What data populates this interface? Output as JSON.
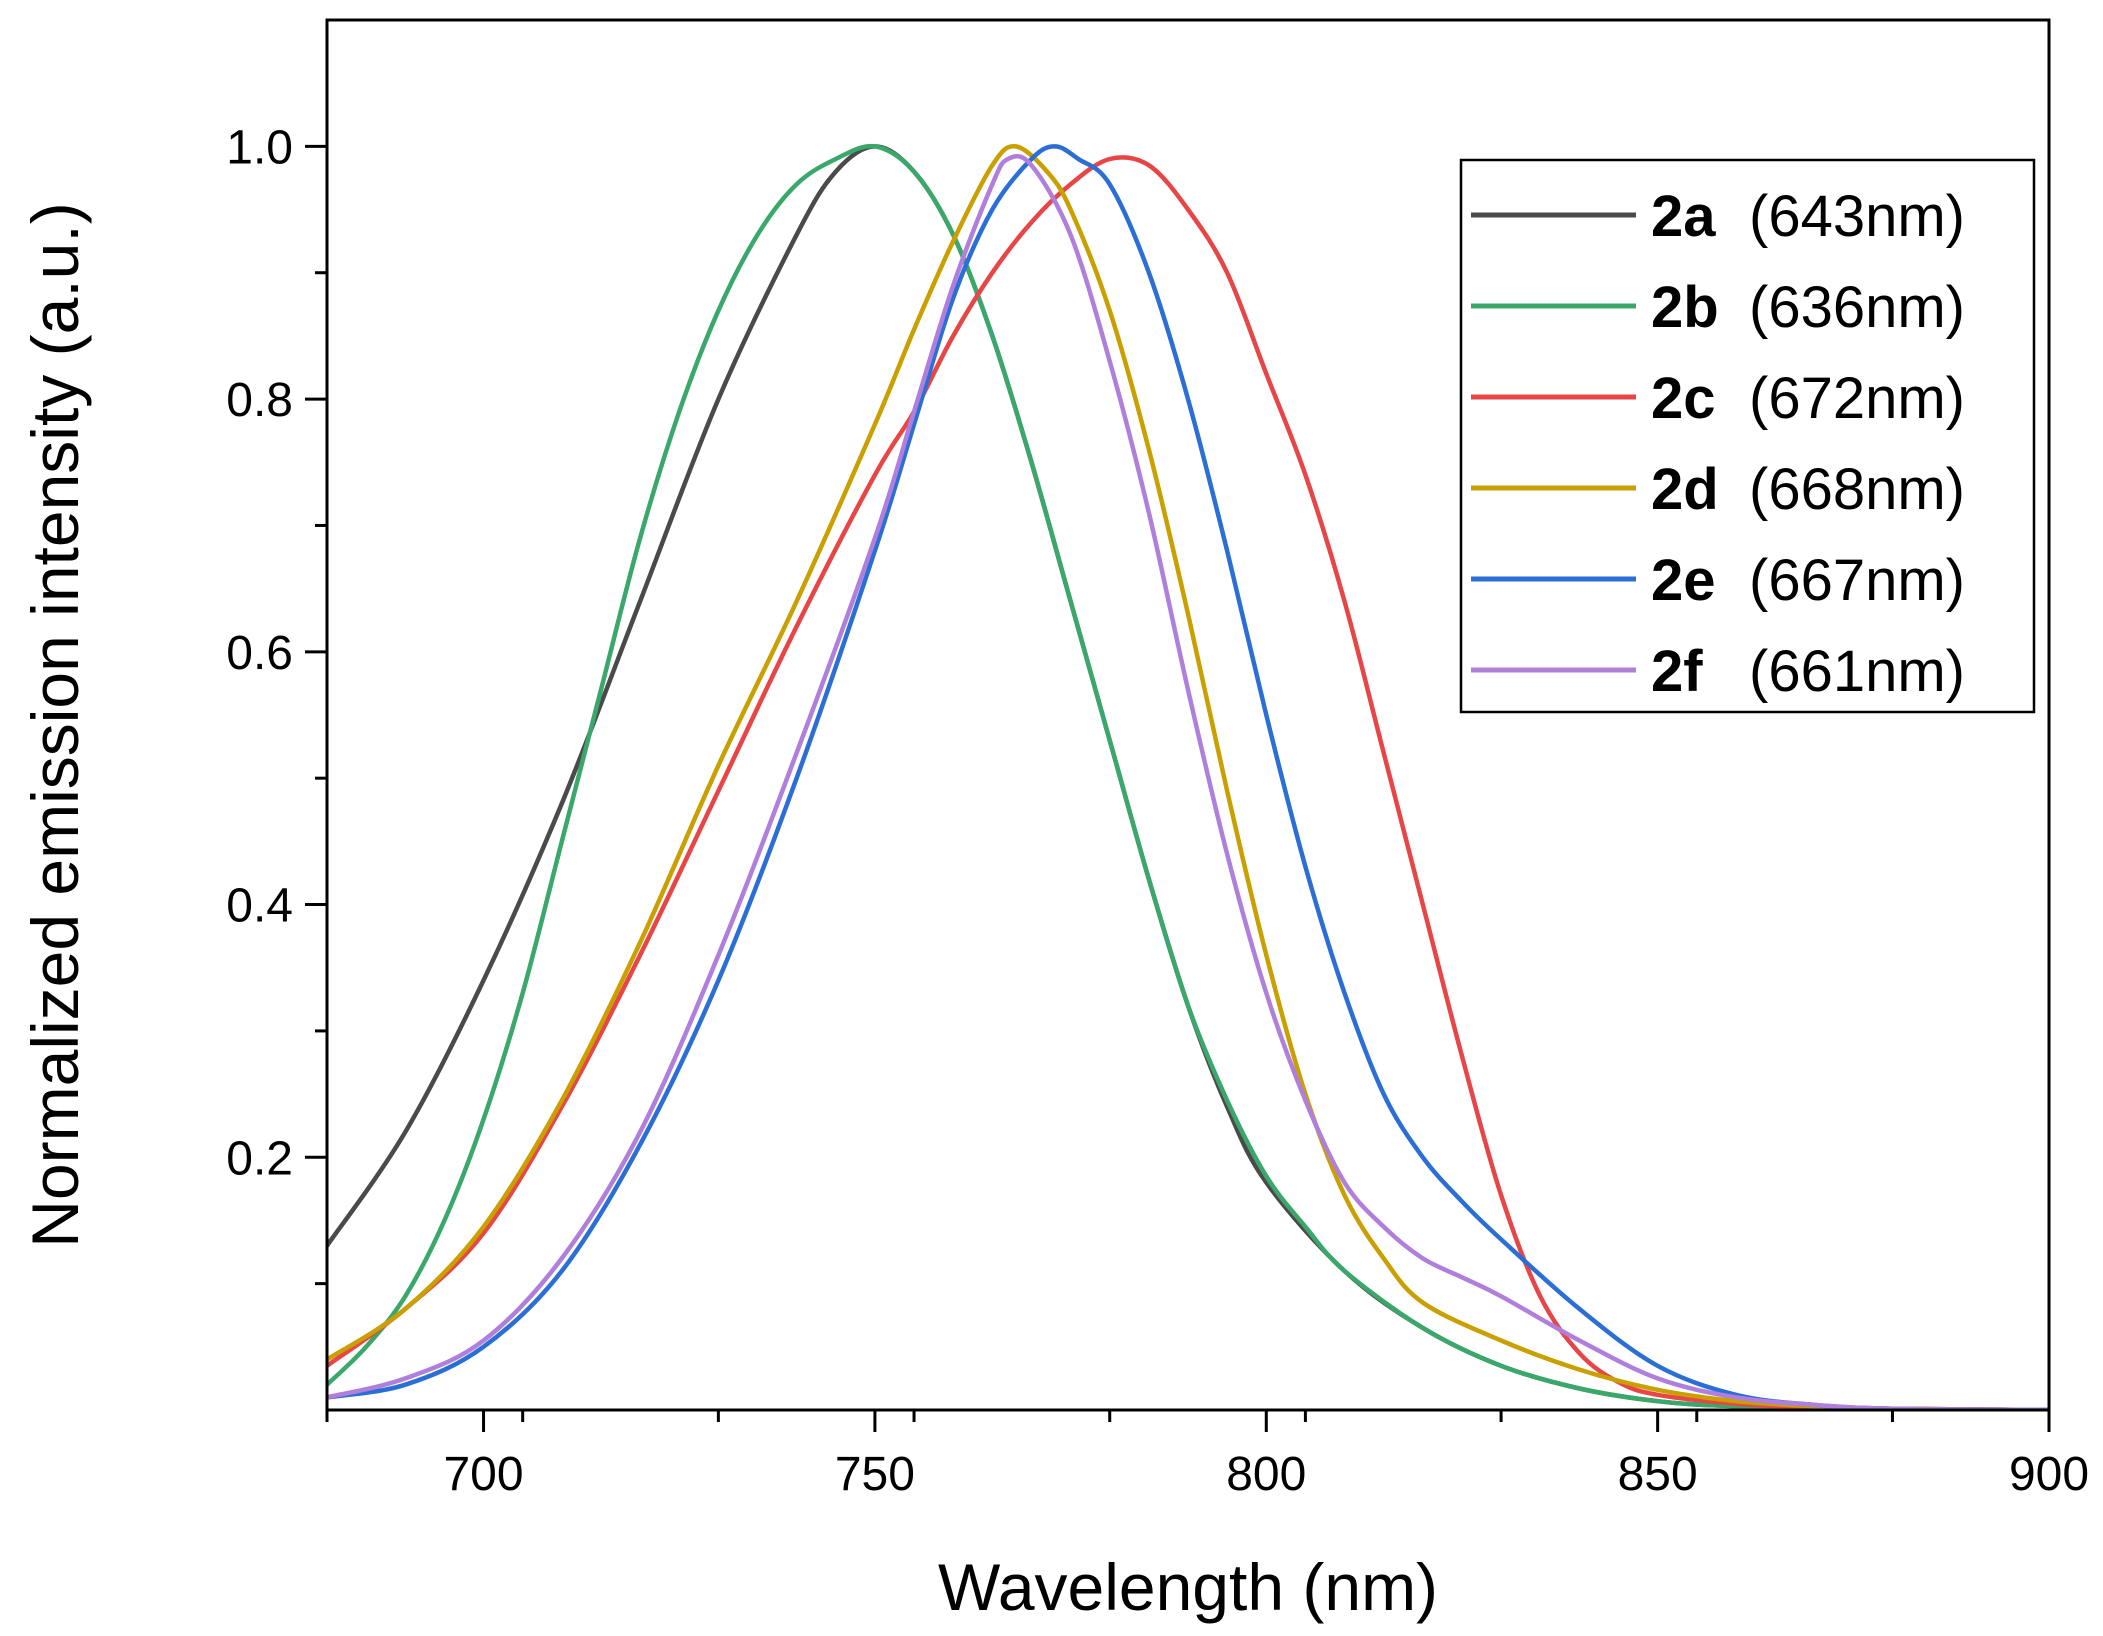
{
  "chart_data": {
    "type": "line",
    "title": "",
    "xlabel": "Wavelength (nm)",
    "ylabel": "Normalized emission intensity (a.u.)",
    "xlim": [
      680,
      900
    ],
    "ylim": [
      0.0,
      1.1
    ],
    "x_ticks": [
      700,
      750,
      800,
      850,
      900
    ],
    "x_tick_labels": [
      "700",
      "750",
      "800",
      "850",
      "900"
    ],
    "y_ticks": [
      0.2,
      0.4,
      0.6,
      0.8,
      1.0
    ],
    "y_tick_labels": [
      "0.2",
      "0.4",
      "0.6",
      "0.8",
      "1.0"
    ],
    "grid": false,
    "legend_position": "top-right",
    "series": [
      {
        "id": "2a",
        "label": "(643nm)",
        "color": "#4a4a4a",
        "points": [
          [
            680,
            0.13
          ],
          [
            690,
            0.22
          ],
          [
            700,
            0.34
          ],
          [
            710,
            0.48
          ],
          [
            720,
            0.64
          ],
          [
            730,
            0.8
          ],
          [
            740,
            0.93
          ],
          [
            745,
            0.98
          ],
          [
            750,
            1.0
          ],
          [
            755,
            0.98
          ],
          [
            760,
            0.93
          ],
          [
            765,
            0.85
          ],
          [
            770,
            0.75
          ],
          [
            775,
            0.64
          ],
          [
            780,
            0.53
          ],
          [
            785,
            0.42
          ],
          [
            790,
            0.32
          ],
          [
            795,
            0.24
          ],
          [
            800,
            0.18
          ],
          [
            810,
            0.11
          ],
          [
            820,
            0.065
          ],
          [
            830,
            0.035
          ],
          [
            840,
            0.017
          ],
          [
            850,
            0.007
          ],
          [
            860,
            0.003
          ],
          [
            880,
            0.001
          ],
          [
            900,
            0.0
          ]
        ]
      },
      {
        "id": "2b",
        "label": "(636nm)",
        "color": "#3aa86b",
        "points": [
          [
            680,
            0.02
          ],
          [
            685,
            0.05
          ],
          [
            690,
            0.09
          ],
          [
            695,
            0.15
          ],
          [
            700,
            0.23
          ],
          [
            705,
            0.33
          ],
          [
            710,
            0.45
          ],
          [
            715,
            0.57
          ],
          [
            720,
            0.69
          ],
          [
            725,
            0.79
          ],
          [
            730,
            0.87
          ],
          [
            735,
            0.93
          ],
          [
            740,
            0.97
          ],
          [
            745,
            0.99
          ],
          [
            750,
            1.0
          ],
          [
            755,
            0.98
          ],
          [
            760,
            0.93
          ],
          [
            765,
            0.85
          ],
          [
            770,
            0.75
          ],
          [
            775,
            0.64
          ],
          [
            780,
            0.53
          ],
          [
            785,
            0.42
          ],
          [
            790,
            0.32
          ],
          [
            795,
            0.245
          ],
          [
            800,
            0.185
          ],
          [
            805,
            0.145
          ],
          [
            810,
            0.11
          ],
          [
            820,
            0.065
          ],
          [
            830,
            0.035
          ],
          [
            840,
            0.017
          ],
          [
            850,
            0.007
          ],
          [
            860,
            0.003
          ],
          [
            880,
            0.001
          ],
          [
            900,
            0.0
          ]
        ]
      },
      {
        "id": "2c",
        "label": "(672nm)",
        "color": "#e84646",
        "points": [
          [
            680,
            0.035
          ],
          [
            690,
            0.08
          ],
          [
            700,
            0.14
          ],
          [
            710,
            0.24
          ],
          [
            720,
            0.36
          ],
          [
            730,
            0.49
          ],
          [
            740,
            0.62
          ],
          [
            750,
            0.74
          ],
          [
            755,
            0.79
          ],
          [
            760,
            0.85
          ],
          [
            765,
            0.9
          ],
          [
            770,
            0.94
          ],
          [
            775,
            0.97
          ],
          [
            780,
            0.99
          ],
          [
            785,
            0.985
          ],
          [
            790,
            0.95
          ],
          [
            795,
            0.9
          ],
          [
            800,
            0.82
          ],
          [
            805,
            0.74
          ],
          [
            810,
            0.64
          ],
          [
            815,
            0.52
          ],
          [
            820,
            0.4
          ],
          [
            825,
            0.28
          ],
          [
            830,
            0.17
          ],
          [
            835,
            0.09
          ],
          [
            840,
            0.045
          ],
          [
            845,
            0.022
          ],
          [
            850,
            0.012
          ],
          [
            860,
            0.005
          ],
          [
            870,
            0.002
          ],
          [
            880,
            0.001
          ],
          [
            900,
            0.0
          ]
        ]
      },
      {
        "id": "2d",
        "label": "(668nm)",
        "color": "#c9a000",
        "points": [
          [
            680,
            0.04
          ],
          [
            690,
            0.08
          ],
          [
            700,
            0.145
          ],
          [
            710,
            0.245
          ],
          [
            720,
            0.37
          ],
          [
            730,
            0.51
          ],
          [
            740,
            0.64
          ],
          [
            750,
            0.78
          ],
          [
            755,
            0.855
          ],
          [
            760,
            0.925
          ],
          [
            765,
            0.985
          ],
          [
            768,
            1.0
          ],
          [
            772,
            0.98
          ],
          [
            775,
            0.95
          ],
          [
            780,
            0.87
          ],
          [
            785,
            0.76
          ],
          [
            790,
            0.63
          ],
          [
            795,
            0.49
          ],
          [
            800,
            0.36
          ],
          [
            805,
            0.25
          ],
          [
            810,
            0.17
          ],
          [
            815,
            0.12
          ],
          [
            820,
            0.085
          ],
          [
            830,
            0.055
          ],
          [
            840,
            0.032
          ],
          [
            850,
            0.016
          ],
          [
            860,
            0.007
          ],
          [
            870,
            0.003
          ],
          [
            880,
            0.001
          ],
          [
            900,
            0.0
          ]
        ]
      },
      {
        "id": "2e",
        "label": "(667nm)",
        "color": "#2b6fd6",
        "points": [
          [
            680,
            0.01
          ],
          [
            690,
            0.02
          ],
          [
            700,
            0.05
          ],
          [
            710,
            0.11
          ],
          [
            720,
            0.21
          ],
          [
            730,
            0.34
          ],
          [
            740,
            0.5
          ],
          [
            750,
            0.68
          ],
          [
            755,
            0.78
          ],
          [
            760,
            0.88
          ],
          [
            765,
            0.95
          ],
          [
            770,
            0.99
          ],
          [
            773,
            1.0
          ],
          [
            776,
            0.99
          ],
          [
            780,
            0.97
          ],
          [
            785,
            0.9
          ],
          [
            790,
            0.8
          ],
          [
            795,
            0.68
          ],
          [
            800,
            0.55
          ],
          [
            805,
            0.43
          ],
          [
            810,
            0.33
          ],
          [
            815,
            0.25
          ],
          [
            820,
            0.2
          ],
          [
            825,
            0.165
          ],
          [
            830,
            0.135
          ],
          [
            840,
            0.08
          ],
          [
            850,
            0.035
          ],
          [
            860,
            0.012
          ],
          [
            870,
            0.004
          ],
          [
            880,
            0.001
          ],
          [
            900,
            0.0
          ]
        ]
      },
      {
        "id": "2f",
        "label": "(661nm)",
        "color": "#b07fdc",
        "points": [
          [
            680,
            0.01
          ],
          [
            690,
            0.025
          ],
          [
            700,
            0.055
          ],
          [
            710,
            0.12
          ],
          [
            720,
            0.22
          ],
          [
            730,
            0.36
          ],
          [
            740,
            0.52
          ],
          [
            750,
            0.69
          ],
          [
            755,
            0.79
          ],
          [
            760,
            0.89
          ],
          [
            765,
            0.97
          ],
          [
            767,
            0.99
          ],
          [
            770,
            0.985
          ],
          [
            775,
            0.93
          ],
          [
            780,
            0.83
          ],
          [
            785,
            0.71
          ],
          [
            790,
            0.57
          ],
          [
            795,
            0.44
          ],
          [
            800,
            0.33
          ],
          [
            805,
            0.245
          ],
          [
            810,
            0.18
          ],
          [
            815,
            0.145
          ],
          [
            820,
            0.12
          ],
          [
            825,
            0.105
          ],
          [
            830,
            0.09
          ],
          [
            840,
            0.055
          ],
          [
            850,
            0.025
          ],
          [
            860,
            0.01
          ],
          [
            870,
            0.004
          ],
          [
            880,
            0.001
          ],
          [
            900,
            0.0
          ]
        ]
      }
    ]
  }
}
